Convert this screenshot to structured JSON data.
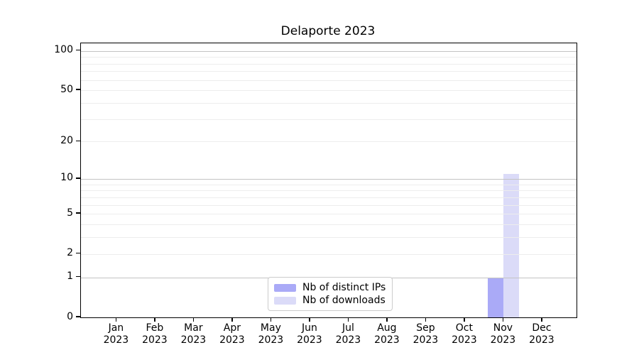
{
  "chart_data": {
    "type": "bar",
    "title": "Delaporte 2023",
    "categories": [
      "Jan 2023",
      "Feb 2023",
      "Mar 2023",
      "Apr 2023",
      "May 2023",
      "Jun 2023",
      "Jul 2023",
      "Aug 2023",
      "Sep 2023",
      "Oct 2023",
      "Nov 2023",
      "Dec 2023"
    ],
    "series": [
      {
        "name": "Nb of distinct IPs",
        "color": "#aaaaf7",
        "values": [
          0,
          0,
          0,
          0,
          0,
          0,
          0,
          0,
          0,
          0,
          1,
          0
        ]
      },
      {
        "name": "Nb of downloads",
        "color": "#dbdbf8",
        "values": [
          0,
          0,
          0,
          0,
          0,
          0,
          0,
          0,
          0,
          0,
          11,
          0
        ]
      }
    ],
    "xlabel": "",
    "ylabel": "",
    "yscale": "log10(1+y)",
    "ylim": [
      0,
      114
    ],
    "ytick_values": [
      0,
      1,
      2,
      5,
      10,
      20,
      50,
      100
    ],
    "major_grid_values": [
      1,
      10,
      100
    ],
    "minor_grid_values": [
      2,
      3,
      4,
      5,
      6,
      7,
      8,
      9,
      20,
      30,
      40,
      50,
      60,
      70,
      80,
      90
    ],
    "grid": "horizontal major + log minor, drawn above bars",
    "legend_position": "lower center",
    "colors": {
      "background": "#ffffff",
      "spine": "#000000",
      "major_grid": "#c3c3c3",
      "minor_grid": "#ededed",
      "text": "#000000"
    }
  }
}
